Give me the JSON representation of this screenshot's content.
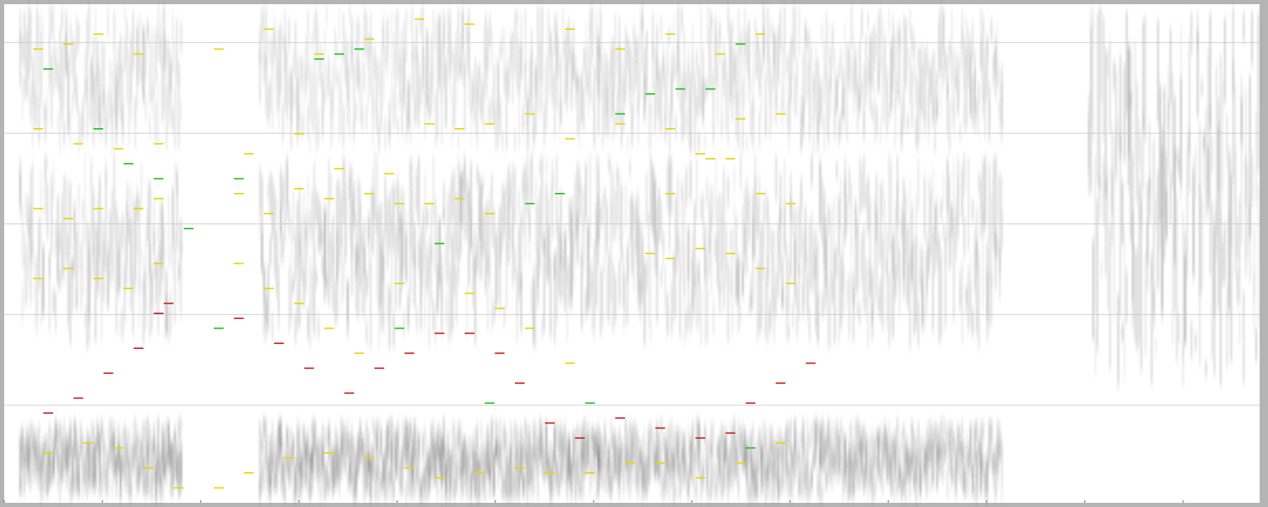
{
  "chart_data": {
    "type": "spectrogram",
    "title": "",
    "xlabel": "",
    "ylabel": "",
    "grid": true,
    "x_ticks": 13,
    "y_gridlines": 5,
    "colors": {
      "background": "#b4b4b4",
      "plot_bg": "#ffffff",
      "gray_energy": "#222222",
      "gridline": "#c8c8c8",
      "formant_red": "#cc2222",
      "formant_yellow": "#e6d600",
      "formant_green": "#22c022"
    },
    "energy_bands": [
      {
        "segment": 1,
        "band": "low",
        "intensity": 0.9
      },
      {
        "segment": 1,
        "band": "mid",
        "intensity": 0.7
      },
      {
        "segment": 1,
        "band": "high",
        "intensity": 0.6
      },
      {
        "segment": 2,
        "band": "low",
        "intensity": 0.95
      },
      {
        "segment": 2,
        "band": "mid",
        "intensity": 0.75
      },
      {
        "segment": 2,
        "band": "high",
        "intensity": 0.55
      },
      {
        "segment": 3,
        "band": "low",
        "intensity": 0.85
      },
      {
        "segment": 3,
        "band": "mid",
        "intensity": 0.7
      },
      {
        "segment": 3,
        "band": "high",
        "intensity": 0.6
      },
      {
        "segment": 4,
        "band": "noise",
        "intensity": 0.8
      }
    ],
    "series": [
      {
        "color": "formant_red",
        "points": [
          [
            0.03,
            0.82
          ],
          [
            0.06,
            0.79
          ],
          [
            0.09,
            0.74
          ],
          [
            0.12,
            0.69
          ],
          [
            0.14,
            0.62
          ],
          [
            0.15,
            0.6
          ],
          [
            0.22,
            0.63
          ],
          [
            0.26,
            0.68
          ],
          [
            0.29,
            0.73
          ],
          [
            0.33,
            0.78
          ],
          [
            0.36,
            0.73
          ],
          [
            0.39,
            0.7
          ],
          [
            0.42,
            0.66
          ],
          [
            0.45,
            0.66
          ],
          [
            0.48,
            0.7
          ],
          [
            0.5,
            0.76
          ],
          [
            0.53,
            0.84
          ],
          [
            0.56,
            0.87
          ],
          [
            0.6,
            0.83
          ],
          [
            0.64,
            0.85
          ],
          [
            0.68,
            0.87
          ],
          [
            0.71,
            0.86
          ],
          [
            0.73,
            0.8
          ],
          [
            0.76,
            0.76
          ],
          [
            0.79,
            0.72
          ]
        ]
      },
      {
        "color": "formant_yellow",
        "points": [
          [
            0.03,
            0.9
          ],
          [
            0.07,
            0.88
          ],
          [
            0.1,
            0.89
          ],
          [
            0.13,
            0.93
          ],
          [
            0.16,
            0.97
          ],
          [
            0.2,
            0.97
          ],
          [
            0.23,
            0.94
          ],
          [
            0.27,
            0.91
          ],
          [
            0.31,
            0.9
          ],
          [
            0.35,
            0.91
          ],
          [
            0.39,
            0.93
          ],
          [
            0.42,
            0.95
          ],
          [
            0.46,
            0.94
          ],
          [
            0.5,
            0.93
          ],
          [
            0.53,
            0.94
          ],
          [
            0.57,
            0.94
          ],
          [
            0.61,
            0.92
          ],
          [
            0.64,
            0.92
          ],
          [
            0.68,
            0.95
          ],
          [
            0.72,
            0.92
          ],
          [
            0.76,
            0.88
          ]
        ]
      },
      {
        "color": "formant_yellow",
        "points": [
          [
            0.02,
            0.55
          ],
          [
            0.05,
            0.53
          ],
          [
            0.08,
            0.55
          ],
          [
            0.11,
            0.57
          ],
          [
            0.14,
            0.52
          ],
          [
            0.22,
            0.52
          ],
          [
            0.25,
            0.57
          ],
          [
            0.28,
            0.6
          ],
          [
            0.31,
            0.65
          ],
          [
            0.34,
            0.7
          ],
          [
            0.38,
            0.56
          ],
          [
            0.42,
            0.48
          ],
          [
            0.45,
            0.58
          ],
          [
            0.48,
            0.61
          ],
          [
            0.51,
            0.65
          ],
          [
            0.55,
            0.72
          ],
          [
            0.63,
            0.5
          ],
          [
            0.65,
            0.51
          ],
          [
            0.68,
            0.49
          ],
          [
            0.71,
            0.5
          ],
          [
            0.74,
            0.53
          ],
          [
            0.77,
            0.56
          ]
        ]
      },
      {
        "color": "formant_yellow",
        "points": [
          [
            0.02,
            0.41
          ],
          [
            0.05,
            0.43
          ],
          [
            0.08,
            0.41
          ],
          [
            0.12,
            0.41
          ],
          [
            0.14,
            0.39
          ],
          [
            0.22,
            0.38
          ],
          [
            0.25,
            0.42
          ],
          [
            0.28,
            0.37
          ],
          [
            0.31,
            0.39
          ],
          [
            0.35,
            0.38
          ],
          [
            0.38,
            0.4
          ],
          [
            0.41,
            0.4
          ],
          [
            0.44,
            0.39
          ],
          [
            0.47,
            0.42
          ],
          [
            0.65,
            0.38
          ],
          [
            0.68,
            0.3
          ],
          [
            0.71,
            0.31
          ],
          [
            0.74,
            0.38
          ],
          [
            0.77,
            0.4
          ]
        ]
      },
      {
        "color": "formant_yellow",
        "points": [
          [
            0.02,
            0.25
          ],
          [
            0.06,
            0.28
          ],
          [
            0.1,
            0.29
          ],
          [
            0.14,
            0.28
          ],
          [
            0.23,
            0.3
          ],
          [
            0.28,
            0.26
          ],
          [
            0.32,
            0.33
          ],
          [
            0.37,
            0.34
          ],
          [
            0.41,
            0.24
          ],
          [
            0.44,
            0.25
          ],
          [
            0.47,
            0.24
          ],
          [
            0.51,
            0.22
          ],
          [
            0.55,
            0.27
          ],
          [
            0.6,
            0.24
          ],
          [
            0.65,
            0.25
          ],
          [
            0.69,
            0.31
          ],
          [
            0.72,
            0.23
          ],
          [
            0.76,
            0.22
          ]
        ]
      },
      {
        "color": "formant_yellow",
        "points": [
          [
            0.02,
            0.09
          ],
          [
            0.05,
            0.08
          ],
          [
            0.08,
            0.06
          ],
          [
            0.12,
            0.1
          ],
          [
            0.2,
            0.09
          ],
          [
            0.25,
            0.05
          ],
          [
            0.3,
            0.1
          ],
          [
            0.35,
            0.07
          ],
          [
            0.4,
            0.03
          ],
          [
            0.45,
            0.04
          ],
          [
            0.55,
            0.05
          ],
          [
            0.6,
            0.09
          ],
          [
            0.65,
            0.06
          ],
          [
            0.7,
            0.1
          ],
          [
            0.74,
            0.06
          ]
        ]
      },
      {
        "color": "formant_green",
        "points": [
          [
            0.03,
            0.13
          ],
          [
            0.08,
            0.25
          ],
          [
            0.11,
            0.32
          ],
          [
            0.14,
            0.35
          ],
          [
            0.17,
            0.45
          ],
          [
            0.2,
            0.65
          ],
          [
            0.22,
            0.35
          ],
          [
            0.3,
            0.11
          ],
          [
            0.32,
            0.1
          ],
          [
            0.34,
            0.09
          ],
          [
            0.38,
            0.65
          ],
          [
            0.42,
            0.48
          ],
          [
            0.47,
            0.8
          ],
          [
            0.51,
            0.4
          ],
          [
            0.54,
            0.38
          ],
          [
            0.57,
            0.8
          ],
          [
            0.6,
            0.22
          ],
          [
            0.63,
            0.18
          ],
          [
            0.66,
            0.17
          ],
          [
            0.69,
            0.17
          ],
          [
            0.72,
            0.08
          ],
          [
            0.73,
            0.89
          ]
        ]
      }
    ]
  }
}
